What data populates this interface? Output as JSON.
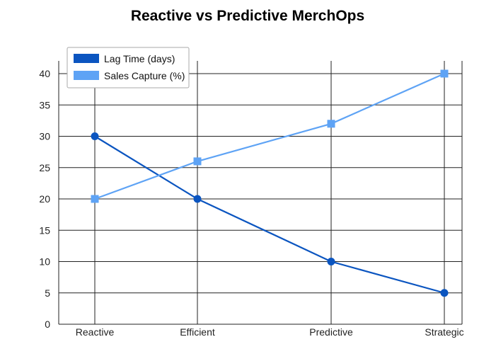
{
  "chart_data": {
    "type": "line",
    "title": "Reactive vs Predictive MerchOps",
    "categories": [
      "Reactive",
      "Efficient",
      "Predictive",
      "Strategic"
    ],
    "series": [
      {
        "name": "Lag Time (days)",
        "values": [
          30,
          20,
          10,
          5
        ],
        "color": "#0b55c0",
        "marker": "circle"
      },
      {
        "name": "Sales Capture (%)",
        "values": [
          20,
          26,
          32,
          40
        ],
        "color": "#5ea3f5",
        "marker": "square"
      }
    ],
    "ylim": [
      0,
      40
    ],
    "yticks": [
      0,
      5,
      10,
      15,
      20,
      25,
      30,
      35,
      40
    ],
    "grid": true,
    "legend": "top-left"
  }
}
